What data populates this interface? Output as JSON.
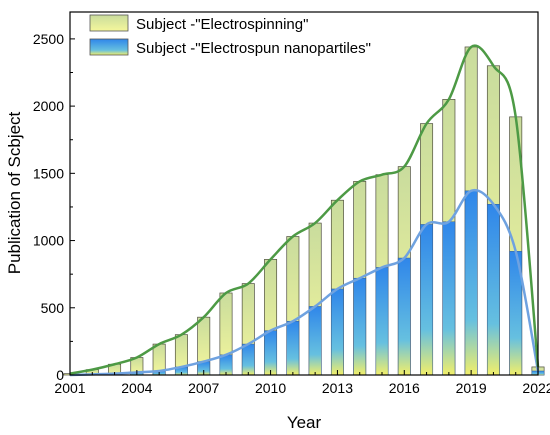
{
  "chart_data": {
    "type": "bar",
    "x": [
      2001,
      2002,
      2003,
      2004,
      2005,
      2006,
      2007,
      2008,
      2009,
      2010,
      2011,
      2012,
      2013,
      2014,
      2015,
      2016,
      2017,
      2018,
      2019,
      2020,
      2021,
      2022
    ],
    "series": [
      {
        "name": "Subject -\"Electrospinning\"",
        "values": [
          10,
          40,
          80,
          130,
          230,
          300,
          430,
          610,
          680,
          860,
          1030,
          1130,
          1300,
          1440,
          1490,
          1550,
          1870,
          2050,
          2440,
          2300,
          1920,
          60
        ]
      },
      {
        "name": "Subject -\"Electrospun nanopartiles\"",
        "values": [
          0,
          5,
          10,
          20,
          30,
          60,
          100,
          150,
          230,
          330,
          400,
          510,
          640,
          720,
          800,
          870,
          1120,
          1140,
          1370,
          1270,
          920,
          30
        ]
      }
    ],
    "xlabel": "Year",
    "ylabel": "Publication of Scbject",
    "xticks": [
      "2001",
      "2004",
      "2007",
      "2010",
      "2013",
      "2016",
      "2019",
      "2022"
    ],
    "yticks": [
      "0",
      "500",
      "1000",
      "1500",
      "2000",
      "2500"
    ],
    "xlim": [
      2001,
      2022
    ],
    "ylim": [
      0,
      2700
    ],
    "legend_position": "top-left",
    "colors": {
      "series1_bar_top": "#cddfa2",
      "series1_bar_bottom": "#f6f79a",
      "series1_line": "#4d9a45",
      "series2_bar_top": "#3d8fe6",
      "series2_bar_bottom": "#f3ee6e",
      "series2_line": "#6fa2e0",
      "axis": "#000000"
    }
  }
}
